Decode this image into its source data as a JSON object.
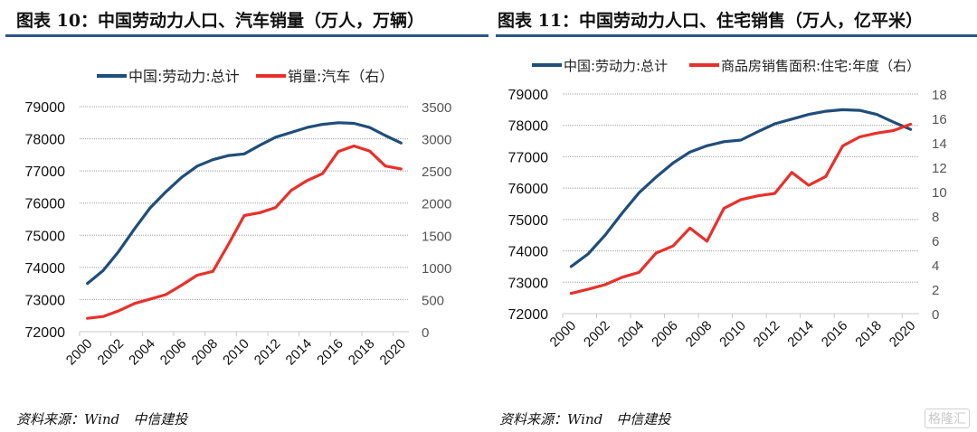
{
  "charts_meta": {
    "left_title": "图表 10：中国劳动力人口、汽车销量（万人，万辆）",
    "right_title": "图表 11：中国劳动力人口、住宅销售（万人，亿平米）",
    "source": "资料来源：Wind　中信建投",
    "watermark": "格隆汇"
  },
  "colors": {
    "labor": "#1f4e79",
    "red": "#e8302a",
    "rule": "#2b5686",
    "grid": "#a0a0a0"
  },
  "chart_data": [
    {
      "type": "line",
      "title": "图表 10：中国劳动力人口、汽车销量（万人，万辆）",
      "x": [
        2000,
        2001,
        2002,
        2003,
        2004,
        2005,
        2006,
        2007,
        2008,
        2009,
        2010,
        2011,
        2012,
        2013,
        2014,
        2015,
        2016,
        2017,
        2018,
        2019,
        2020
      ],
      "x_tick_labels": [
        "2000",
        "2002",
        "2004",
        "2006",
        "2008",
        "2010",
        "2012",
        "2014",
        "2016",
        "2018",
        "2020"
      ],
      "y_left": {
        "ylim": [
          72000,
          79000
        ],
        "ticks": [
          "72000",
          "73000",
          "74000",
          "75000",
          "76000",
          "77000",
          "78000",
          "79000"
        ]
      },
      "y_right": {
        "ylim": [
          0,
          3500
        ],
        "ticks": [
          "0",
          "500",
          "1000",
          "1500",
          "2000",
          "2500",
          "3000",
          "3500"
        ]
      },
      "grid": true,
      "legend_position": "top",
      "series": [
        {
          "name": "中国:劳动力:总计",
          "axis": "left",
          "color": "#1f4e79",
          "values": [
            73500,
            73900,
            74500,
            75200,
            75850,
            76350,
            76800,
            77150,
            77350,
            77480,
            77530,
            77800,
            78050,
            78200,
            78350,
            78450,
            78500,
            78480,
            78350,
            78100,
            77870
          ]
        },
        {
          "name": "销量:汽车（右）",
          "axis": "right",
          "color": "#e8302a",
          "values": [
            208,
            236,
            325,
            439,
            507,
            576,
            722,
            879,
            938,
            1364,
            1806,
            1851,
            1931,
            2198,
            2349,
            2460,
            2803,
            2888,
            2808,
            2577,
            2531
          ]
        }
      ]
    },
    {
      "type": "line",
      "title": "图表 11：中国劳动力人口、住宅销售（万人，亿平米）",
      "x": [
        2000,
        2001,
        2002,
        2003,
        2004,
        2005,
        2006,
        2007,
        2008,
        2009,
        2010,
        2011,
        2012,
        2013,
        2014,
        2015,
        2016,
        2017,
        2018,
        2019,
        2020
      ],
      "x_tick_labels": [
        "2000",
        "2002",
        "2004",
        "2006",
        "2008",
        "2010",
        "2012",
        "2014",
        "2016",
        "2018",
        "2020"
      ],
      "y_left": {
        "ylim": [
          72000,
          79000
        ],
        "ticks": [
          "72000",
          "73000",
          "74000",
          "75000",
          "76000",
          "77000",
          "78000",
          "79000"
        ]
      },
      "y_right": {
        "ylim": [
          0,
          18
        ],
        "ticks": [
          "0",
          "2",
          "4",
          "6",
          "8",
          "10",
          "12",
          "14",
          "16",
          "18"
        ]
      },
      "grid": true,
      "legend_position": "top",
      "series": [
        {
          "name": "中国:劳动力:总计",
          "axis": "left",
          "color": "#1f4e79",
          "values": [
            73500,
            73900,
            74500,
            75200,
            75850,
            76350,
            76800,
            77150,
            77350,
            77480,
            77530,
            77800,
            78050,
            78200,
            78350,
            78450,
            78500,
            78480,
            78350,
            78100,
            77870
          ]
        },
        {
          "name": "商品房销售面积:住宅:年度（右）",
          "axis": "right",
          "color": "#e8302a",
          "values": [
            1.66,
            1.99,
            2.37,
            2.98,
            3.38,
            4.96,
            5.54,
            7.01,
            5.93,
            8.62,
            9.34,
            9.65,
            9.85,
            11.57,
            10.52,
            11.24,
            13.75,
            14.48,
            14.79,
            15.01,
            15.52
          ]
        }
      ]
    }
  ]
}
